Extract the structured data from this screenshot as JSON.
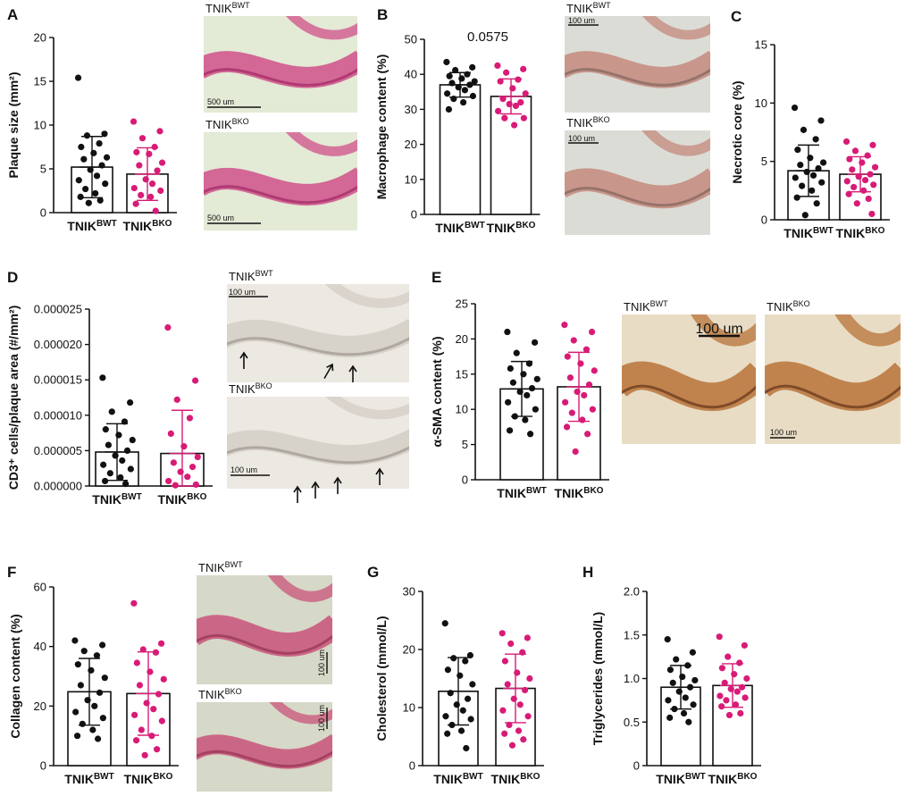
{
  "colors": {
    "wt": "#111111",
    "ko": "#d81b76",
    "axis": "#111111"
  },
  "groups": {
    "wt_base": "TNIK",
    "wt_sup": "BWT",
    "ko_base": "TNIK",
    "ko_sup": "BKO"
  },
  "chart_data": [
    {
      "panel": "A",
      "type": "bar",
      "ylabel": "Plaque size (mm²)",
      "ylim": [
        0,
        20
      ],
      "ticks": [
        0,
        5,
        10,
        15,
        20
      ],
      "tick_labels": [
        "0",
        "5",
        "10",
        "15",
        "20"
      ],
      "categories": [
        "TNIKBWT",
        "TNIKBKO"
      ],
      "values": [
        5.2,
        4.4
      ],
      "sd": [
        3.5,
        3.0
      ],
      "points": [
        [
          15.4,
          9.0,
          8.8,
          7.9,
          7.5,
          6.8,
          6.3,
          6.1,
          5.4,
          4.9,
          4.2,
          3.7,
          3.3,
          2.7,
          2.2,
          1.8,
          1.4,
          1.1
        ],
        [
          10.4,
          9.3,
          8.5,
          7.5,
          6.9,
          6.7,
          5.7,
          5.4,
          4.8,
          3.8,
          3.3,
          2.8,
          2.5,
          2.0,
          1.8,
          1.0,
          0.2
        ]
      ]
    },
    {
      "panel": "B",
      "type": "bar",
      "ylabel": "Macrophage content (%)",
      "ylim": [
        0,
        50
      ],
      "ticks": [
        0,
        10,
        20,
        30,
        40,
        50
      ],
      "tick_labels": [
        "0",
        "10",
        "20",
        "30",
        "40",
        "50"
      ],
      "categories": [
        "TNIKBWT",
        "TNIKBKO"
      ],
      "values": [
        37.0,
        33.7
      ],
      "sd": [
        3.5,
        5.0
      ],
      "annotation": "0.0575",
      "points": [
        [
          43.5,
          42.0,
          41.2,
          40.0,
          39.5,
          38.8,
          38.0,
          37.5,
          37.0,
          36.3,
          35.5,
          34.5,
          33.8,
          33.0,
          32.0,
          30.0
        ],
        [
          42.5,
          41.5,
          40.5,
          38.5,
          38.0,
          36.0,
          34.5,
          33.0,
          32.0,
          31.5,
          31.0,
          29.5,
          27.5,
          27.5,
          25.5
        ]
      ]
    },
    {
      "panel": "C",
      "type": "bar",
      "ylabel": "Necrotic core (%)",
      "ylim": [
        0,
        15
      ],
      "ticks": [
        0,
        5,
        10,
        15
      ],
      "tick_labels": [
        "0",
        "5",
        "10",
        "15"
      ],
      "categories": [
        "TNIKBWT",
        "TNIKBKO"
      ],
      "values": [
        4.2,
        3.9
      ],
      "sd": [
        2.2,
        1.5
      ],
      "points": [
        [
          9.6,
          8.5,
          7.7,
          6.9,
          6.0,
          5.3,
          4.9,
          4.7,
          4.4,
          4.1,
          3.8,
          3.6,
          3.2,
          2.9,
          2.5,
          1.9,
          1.4,
          0.4
        ],
        [
          6.7,
          6.4,
          5.9,
          5.5,
          5.2,
          4.9,
          4.5,
          4.3,
          3.9,
          3.7,
          3.4,
          3.3,
          3.0,
          2.8,
          2.5,
          2.2,
          1.8,
          1.4,
          0.5
        ]
      ]
    },
    {
      "panel": "D",
      "type": "bar",
      "ylabel": "CD3⁺ cells/plaque area (#/mm²)",
      "ylim": [
        0,
        2.5e-05
      ],
      "ticks": [
        0,
        5e-06,
        1e-05,
        1.5e-05,
        2e-05,
        2.5e-05
      ],
      "tick_labels": [
        "0.000000",
        "0.000005",
        "0.000010",
        "0.000015",
        "0.000020",
        "0.000025"
      ],
      "categories": [
        "TNIKBWT",
        "TNIKBKO"
      ],
      "values": [
        4.8e-06,
        4.6e-06
      ],
      "sd": [
        4e-06,
        6.1e-06
      ],
      "points": [
        [
          1.53e-05,
          1.18e-05,
          1.05e-05,
          9.1e-06,
          8e-06,
          7.2e-06,
          6.5e-06,
          5.8e-06,
          5e-06,
          4.3e-06,
          3.6e-06,
          3e-06,
          2.4e-06,
          1.8e-06,
          1.2e-06,
          7e-07,
          3e-07
        ],
        [
          2.24e-05,
          1.49e-05,
          1.22e-05,
          9.6e-06,
          7.4e-06,
          5.6e-06,
          4.1e-06,
          3.3e-06,
          2.7e-06,
          2e-06,
          1.3e-06,
          7e-07,
          2e-07,
          1e-07
        ]
      ]
    },
    {
      "panel": "E",
      "type": "bar",
      "ylabel": "α-SMA content (%)",
      "ylim": [
        0,
        25
      ],
      "ticks": [
        0,
        5,
        10,
        15,
        20,
        25
      ],
      "tick_labels": [
        "0",
        "5",
        "10",
        "15",
        "20",
        "25"
      ],
      "categories": [
        "TNIKBWT",
        "TNIKBKO"
      ],
      "values": [
        12.9,
        13.2
      ],
      "sd": [
        3.9,
        4.9
      ],
      "points": [
        [
          21.0,
          19.5,
          18.0,
          16.5,
          15.8,
          15.0,
          14.3,
          13.8,
          13.0,
          12.5,
          12.0,
          11.0,
          10.0,
          9.0,
          8.5,
          7.0,
          6.5
        ],
        [
          22.0,
          21.0,
          19.8,
          18.5,
          17.5,
          16.5,
          15.5,
          14.5,
          13.5,
          12.5,
          12.0,
          11.0,
          10.0,
          9.5,
          8.5,
          7.5,
          6.5,
          4.0
        ]
      ]
    },
    {
      "panel": "F",
      "type": "bar",
      "ylabel": "Collagen content (%)",
      "ylim": [
        0,
        60
      ],
      "ticks": [
        0,
        20,
        40,
        60
      ],
      "tick_labels": [
        "0",
        "20",
        "40",
        "60"
      ],
      "categories": [
        "TNIKBWT",
        "TNIKBKO"
      ],
      "values": [
        24.8,
        24.2
      ],
      "sd": [
        11.2,
        14.0
      ],
      "points": [
        [
          42.0,
          40.5,
          38.5,
          37.0,
          34.0,
          32.0,
          29.5,
          27.0,
          24.5,
          22.0,
          20.0,
          18.0,
          16.0,
          14.0,
          12.0,
          10.0,
          9.0
        ],
        [
          54.5,
          41.0,
          39.0,
          38.0,
          34.5,
          31.5,
          29.0,
          27.0,
          24.0,
          21.0,
          19.0,
          17.0,
          15.0,
          12.0,
          10.0,
          8.5,
          5.5,
          3.5
        ]
      ]
    },
    {
      "panel": "G",
      "type": "bar",
      "ylabel": "Cholesterol (mmol/L)",
      "ylim": [
        0,
        30
      ],
      "ticks": [
        0,
        10,
        20,
        30
      ],
      "tick_labels": [
        "0",
        "10",
        "20",
        "30"
      ],
      "categories": [
        "TNIKBWT",
        "TNIKBKO"
      ],
      "values": [
        12.8,
        13.3
      ],
      "sd": [
        5.8,
        5.9
      ],
      "points": [
        [
          24.5,
          19.0,
          18.5,
          18.0,
          16.5,
          15.5,
          14.0,
          12.5,
          11.5,
          10.5,
          9.5,
          8.5,
          8.0,
          7.0,
          6.0,
          5.5,
          3.0
        ],
        [
          22.8,
          22.0,
          21.0,
          19.5,
          18.0,
          16.0,
          15.0,
          14.0,
          13.0,
          11.5,
          10.5,
          9.5,
          8.5,
          7.0,
          6.0,
          5.5,
          4.5,
          3.5
        ]
      ]
    },
    {
      "panel": "H",
      "type": "bar",
      "ylabel": "Triglycerides (mmol/L)",
      "ylim": [
        0,
        2.0
      ],
      "ticks": [
        0,
        0.5,
        1.0,
        1.5,
        2.0
      ],
      "tick_labels": [
        "0",
        "0.5",
        "1.0",
        "1.5",
        "2.0"
      ],
      "categories": [
        "TNIKBWT",
        "TNIKBKO"
      ],
      "values": [
        0.9,
        0.92
      ],
      "sd": [
        0.25,
        0.25
      ],
      "points": [
        [
          1.45,
          1.3,
          1.22,
          1.15,
          1.1,
          1.02,
          0.98,
          0.95,
          0.9,
          0.85,
          0.78,
          0.75,
          0.7,
          0.65,
          0.6,
          0.55,
          0.5
        ],
        [
          1.48,
          1.38,
          1.25,
          1.18,
          1.12,
          1.05,
          1.0,
          0.95,
          0.9,
          0.88,
          0.85,
          0.8,
          0.78,
          0.75,
          0.7,
          0.68,
          0.6,
          0.58
        ]
      ]
    }
  ],
  "images": [
    {
      "panel": "A",
      "name": "a-wt",
      "label_base": "TNIK",
      "label_sup": "BWT",
      "scale": "500 um"
    },
    {
      "panel": "A",
      "name": "a-ko",
      "label_base": "TNIK",
      "label_sup": "BKO",
      "scale": "500 um"
    },
    {
      "panel": "B",
      "name": "b-wt",
      "label_base": "TNIK",
      "label_sup": "BWT",
      "scale": "100 um"
    },
    {
      "panel": "B",
      "name": "b-ko",
      "label_base": "TNIK",
      "label_sup": "BKO",
      "scale": "100 um"
    },
    {
      "panel": "D",
      "name": "d-wt",
      "label_base": "TNIK",
      "label_sup": "BWT",
      "scale": "100 um"
    },
    {
      "panel": "D",
      "name": "d-ko",
      "label_base": "TNIK",
      "label_sup": "BKO",
      "scale": "100 um"
    },
    {
      "panel": "E",
      "name": "e-wt",
      "label_base": "TNIK",
      "label_sup": "BWT",
      "scale": "100 um"
    },
    {
      "panel": "E",
      "name": "e-ko",
      "label_base": "TNIK",
      "label_sup": "BKO",
      "scale": "100 um"
    },
    {
      "panel": "F",
      "name": "f-wt",
      "label_base": "TNIK",
      "label_sup": "BWT",
      "scale": "100 um"
    },
    {
      "panel": "F",
      "name": "f-ko",
      "label_base": "TNIK",
      "label_sup": "BKO",
      "scale": "100 um"
    }
  ]
}
